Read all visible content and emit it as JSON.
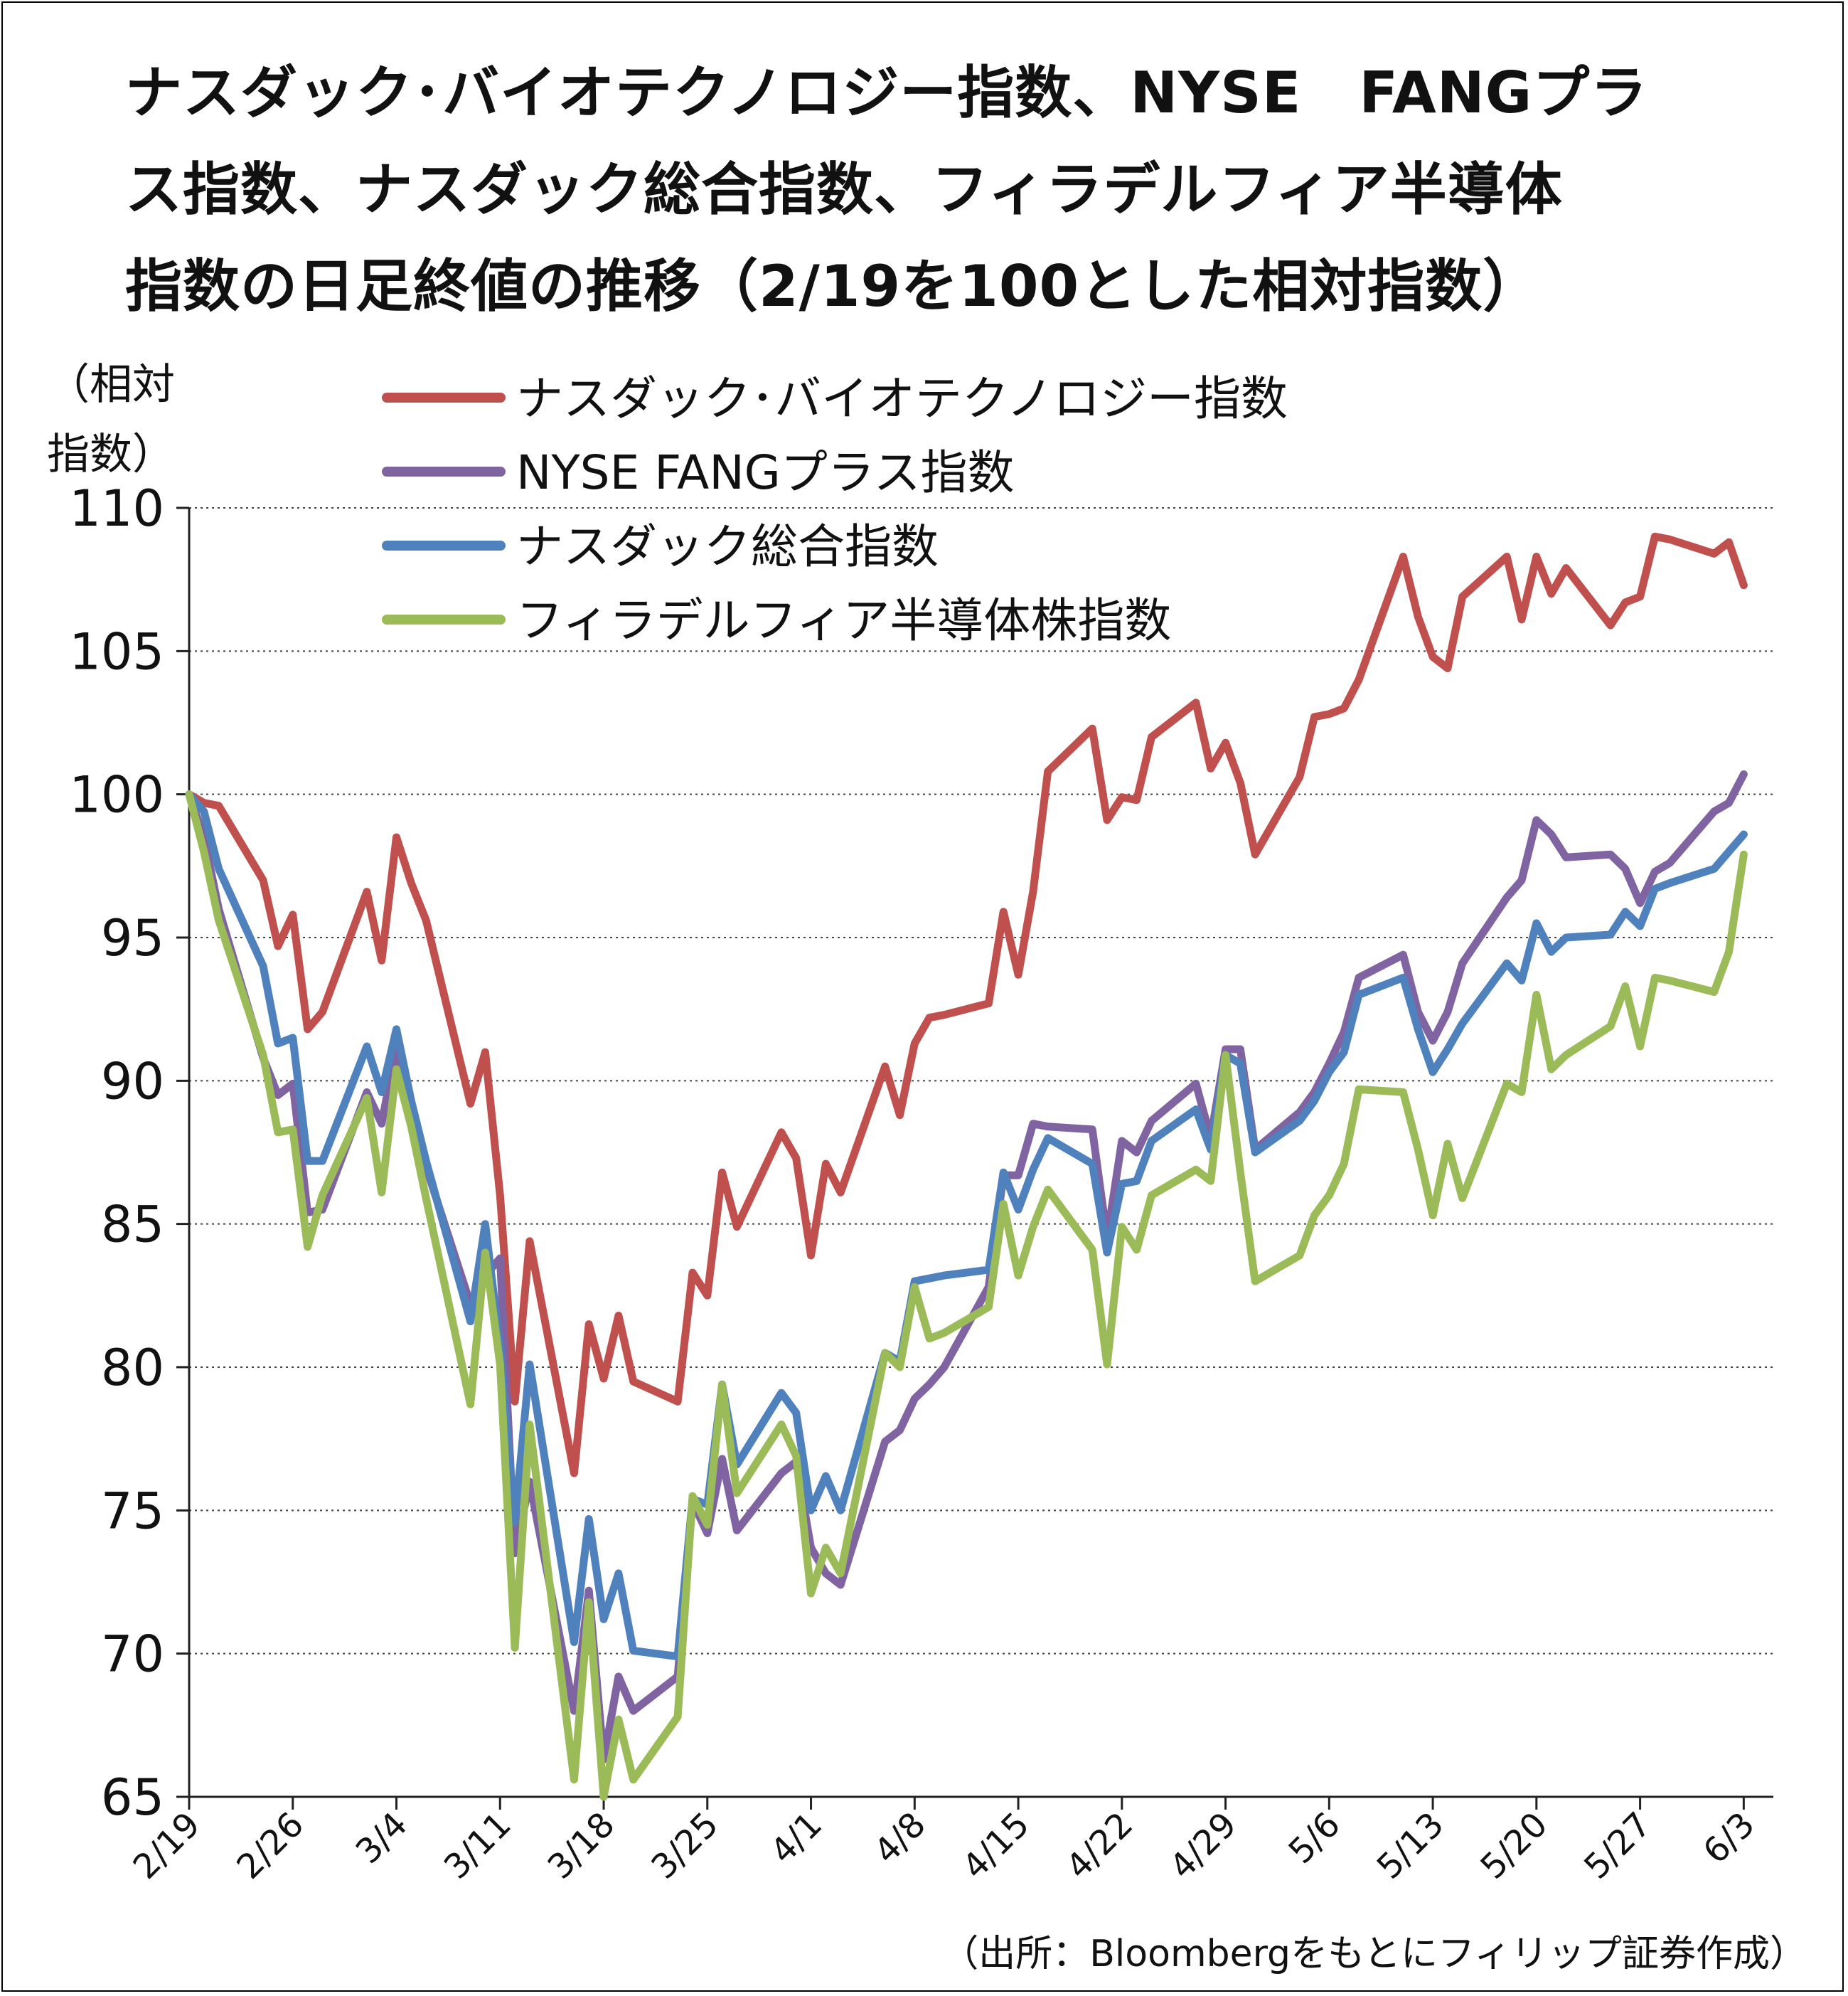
{
  "title": {
    "line1": "ナスダック･バイオテクノロジー指数、NYSE　FANGプラ",
    "line2": "ス指数、ナスダック総合指数、フィラデルフィア半導体",
    "line3": "指数の日足終値の推移（2/19を100とした相対指数）"
  },
  "y_unit": {
    "line1": "（相対",
    "line2": "指数）"
  },
  "source": "（出所：Bloombergをもとにフィリップ証券作成）",
  "chart_data": {
    "type": "line",
    "ylim": [
      65,
      110
    ],
    "yticks": [
      65,
      70,
      75,
      80,
      85,
      90,
      95,
      100,
      105,
      110
    ],
    "ytick_labels": [
      "65",
      "70",
      "75",
      "80",
      "85",
      "90",
      "95",
      "100",
      "105",
      "110"
    ],
    "grid": "horizontal dotted",
    "x_tick_labels": [
      "2/19",
      "2/26",
      "3/4",
      "3/11",
      "3/18",
      "3/25",
      "4/1",
      "4/8",
      "4/15",
      "4/22",
      "4/29",
      "5/6",
      "5/13",
      "5/20",
      "5/27",
      "6/3"
    ],
    "x_tick_days": [
      0,
      7,
      14,
      21,
      28,
      35,
      42,
      49,
      56,
      63,
      70,
      77,
      84,
      91,
      98,
      105
    ],
    "legend_position": "top",
    "series": [
      {
        "name": "ナスダック･バイオテクノロジー指数",
        "color": "#C0504D",
        "x": [
          0,
          1,
          2,
          5,
          6,
          7,
          8,
          9,
          12,
          13,
          14,
          15,
          16,
          19,
          20,
          21,
          22,
          23,
          26,
          27,
          28,
          29,
          30,
          33,
          34,
          35,
          36,
          37,
          40,
          41,
          42,
          43,
          44,
          47,
          48,
          49,
          50,
          51,
          54,
          55,
          56,
          57,
          58,
          61,
          62,
          63,
          64,
          65,
          68,
          69,
          70,
          71,
          72,
          75,
          76,
          77,
          78,
          79,
          82,
          83,
          84,
          85,
          86,
          89,
          90,
          91,
          92,
          93,
          96,
          97,
          98,
          99,
          100,
          103,
          104,
          105
        ],
        "values": [
          100,
          99.7,
          99.6,
          97,
          94.7,
          95.8,
          91.8,
          92.4,
          96.6,
          94.2,
          98.5,
          96.9,
          95.6,
          89.2,
          91,
          86,
          78.8,
          84.4,
          76.3,
          81.5,
          79.6,
          81.8,
          79.5,
          78.8,
          83.3,
          82.5,
          86.8,
          84.9,
          88.2,
          87.3,
          83.9,
          87.1,
          86.1,
          90.5,
          88.8,
          91.3,
          92.2,
          92.3,
          92.7,
          95.9,
          93.7,
          96.6,
          100.8,
          102.3,
          99.1,
          99.9,
          99.8,
          102,
          103.2,
          100.9,
          101.8,
          100.4,
          97.9,
          100.6,
          102.7,
          102.8,
          103,
          104,
          108.3,
          106.2,
          104.8,
          104.4,
          106.9,
          108.3,
          106.1,
          108.3,
          107,
          107.9,
          105.9,
          106.7,
          106.9,
          109,
          108.9,
          108.4,
          108.8,
          107.3
        ]
      },
      {
        "name": "NYSE FANGプラス指数",
        "color": "#8064A2",
        "x": [
          0,
          1,
          2,
          5,
          6,
          7,
          8,
          9,
          12,
          13,
          14,
          15,
          16,
          19,
          20,
          21,
          22,
          23,
          26,
          27,
          28,
          29,
          30,
          33,
          34,
          35,
          36,
          37,
          40,
          41,
          42,
          43,
          44,
          47,
          48,
          49,
          50,
          51,
          54,
          55,
          56,
          57,
          58,
          61,
          62,
          63,
          64,
          65,
          68,
          69,
          70,
          71,
          72,
          75,
          76,
          77,
          78,
          79,
          82,
          83,
          84,
          85,
          86,
          89,
          90,
          91,
          92,
          93,
          96,
          97,
          98,
          99,
          100,
          103,
          104,
          105
        ],
        "values": [
          100,
          98.5,
          96,
          90.8,
          89.5,
          89.9,
          85.4,
          85.5,
          89.6,
          88.5,
          91.2,
          89,
          87,
          82.2,
          83.2,
          83.8,
          73.5,
          76,
          68,
          72.2,
          66.3,
          69.2,
          68,
          69.2,
          75.3,
          74.2,
          76.8,
          74.3,
          76.3,
          76.7,
          73.7,
          72.8,
          72.4,
          77.4,
          77.8,
          78.9,
          79.4,
          80,
          82.8,
          86.7,
          86.7,
          88.5,
          88.4,
          88.3,
          84.5,
          87.9,
          87.5,
          88.6,
          89.9,
          88,
          91.1,
          91.1,
          87.6,
          88.9,
          89.6,
          90.6,
          91.7,
          93.6,
          94.4,
          92.4,
          91.4,
          92.4,
          94.1,
          96.4,
          97,
          99.1,
          98.6,
          97.8,
          97.9,
          97.4,
          96.2,
          97.3,
          97.6,
          99.4,
          99.7,
          100.7
        ]
      },
      {
        "name": "ナスダック総合指数",
        "color": "#4F81BD",
        "x": [
          0,
          1,
          2,
          5,
          6,
          7,
          8,
          9,
          12,
          13,
          14,
          15,
          16,
          19,
          20,
          21,
          22,
          23,
          26,
          27,
          28,
          29,
          30,
          33,
          34,
          35,
          36,
          37,
          40,
          41,
          42,
          43,
          44,
          47,
          48,
          49,
          50,
          51,
          54,
          55,
          56,
          57,
          58,
          61,
          62,
          63,
          64,
          65,
          68,
          69,
          70,
          71,
          72,
          75,
          76,
          77,
          78,
          79,
          82,
          83,
          84,
          85,
          86,
          89,
          90,
          91,
          92,
          93,
          96,
          97,
          98,
          99,
          100,
          103,
          104,
          105
        ],
        "values": [
          100,
          99.4,
          97.4,
          94,
          91.3,
          91.5,
          87.2,
          87.2,
          91.2,
          89.6,
          91.8,
          89.3,
          87.2,
          81.6,
          85,
          80.7,
          74.6,
          80.1,
          70.4,
          74.7,
          71.2,
          72.8,
          70.1,
          69.9,
          75.4,
          75.2,
          79.4,
          76.6,
          79.1,
          78.4,
          75,
          76.2,
          75,
          80.5,
          80.2,
          83,
          83.1,
          83.2,
          83.4,
          86.8,
          85.5,
          86.9,
          88,
          87.1,
          84,
          86.4,
          86.5,
          87.9,
          89,
          87.6,
          90.9,
          90.6,
          87.5,
          88.6,
          89.3,
          90.3,
          91,
          93,
          93.6,
          91.8,
          90.3,
          91.1,
          92,
          94.1,
          93.5,
          95.5,
          94.5,
          95,
          95.1,
          95.9,
          95.4,
          96.7,
          96.9,
          97.4,
          98,
          98.6
        ]
      },
      {
        "name": "フィラデルフィア半導体株指数",
        "color": "#9BBB59",
        "x": [
          0,
          1,
          2,
          5,
          6,
          7,
          8,
          9,
          12,
          13,
          14,
          15,
          16,
          19,
          20,
          21,
          22,
          23,
          26,
          27,
          28,
          29,
          30,
          33,
          34,
          35,
          36,
          37,
          40,
          41,
          42,
          43,
          44,
          47,
          48,
          49,
          50,
          51,
          54,
          55,
          56,
          57,
          58,
          61,
          62,
          63,
          64,
          65,
          68,
          69,
          70,
          71,
          72,
          75,
          76,
          77,
          78,
          79,
          82,
          83,
          84,
          85,
          86,
          89,
          90,
          91,
          92,
          93,
          96,
          97,
          98,
          99,
          100,
          103,
          104,
          105
        ],
        "values": [
          100,
          98,
          95.6,
          90.9,
          88.2,
          88.3,
          84.2,
          86,
          89.4,
          86.1,
          90.4,
          88.4,
          85.9,
          78.7,
          84,
          80.1,
          70.2,
          78,
          65.6,
          71.8,
          65,
          67.7,
          65.6,
          67.8,
          75.5,
          74.5,
          79.4,
          75.6,
          78,
          76.9,
          72.1,
          73.7,
          72.8,
          80.5,
          80,
          82.8,
          81,
          81.2,
          82.1,
          85.7,
          83.2,
          84.9,
          86.2,
          84.1,
          80.1,
          84.9,
          84.1,
          86,
          86.9,
          86.5,
          90.9,
          86.8,
          83,
          83.9,
          85.3,
          86,
          87.1,
          89.7,
          89.6,
          87.6,
          85.3,
          87.8,
          85.9,
          89.9,
          89.6,
          93,
          90.4,
          90.9,
          91.9,
          93.3,
          91.2,
          93.6,
          93.5,
          93.1,
          94.5,
          97.9
        ]
      }
    ]
  }
}
